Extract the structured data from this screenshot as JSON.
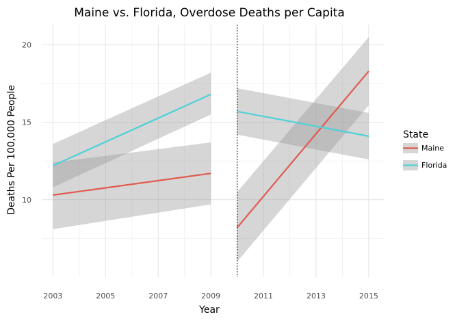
{
  "chart_data": {
    "type": "line",
    "title": "Maine vs. Florida, Overdose Deaths per Capita",
    "xlabel": "Year",
    "ylabel": "Deaths Per 100,000 People",
    "x_ticks": [
      "2003",
      "2005",
      "2007",
      "2009",
      "2011",
      "2013",
      "2015"
    ],
    "y_ticks": [
      "10",
      "15",
      "20"
    ],
    "xlim": [
      2002.6,
      2015.6
    ],
    "ylim": [
      5,
      21.3
    ],
    "grid": true,
    "legend": {
      "title": "State",
      "placement": "right"
    },
    "cutoff_year": 2010,
    "series": [
      {
        "name": "Maine",
        "color": "#e05a4e",
        "segments": [
          {
            "x": [
              2003,
              2009
            ],
            "y": [
              10.3,
              11.7
            ],
            "band_lower": [
              8.1,
              9.7
            ],
            "band_upper": [
              12.4,
              13.7
            ]
          },
          {
            "x": [
              2010,
              2015
            ],
            "y": [
              8.2,
              18.3
            ],
            "band_lower": [
              6.0,
              16.1
            ],
            "band_upper": [
              10.5,
              20.5
            ]
          }
        ]
      },
      {
        "name": "Florida",
        "color": "#4fd0d8",
        "segments": [
          {
            "x": [
              2003,
              2009
            ],
            "y": [
              12.2,
              16.8
            ],
            "band_lower": [
              10.8,
              15.5
            ],
            "band_upper": [
              13.6,
              18.2
            ]
          },
          {
            "x": [
              2010,
              2015
            ],
            "y": [
              15.7,
              14.1
            ],
            "band_lower": [
              14.2,
              12.6
            ],
            "band_upper": [
              17.2,
              15.6
            ]
          }
        ]
      }
    ]
  }
}
